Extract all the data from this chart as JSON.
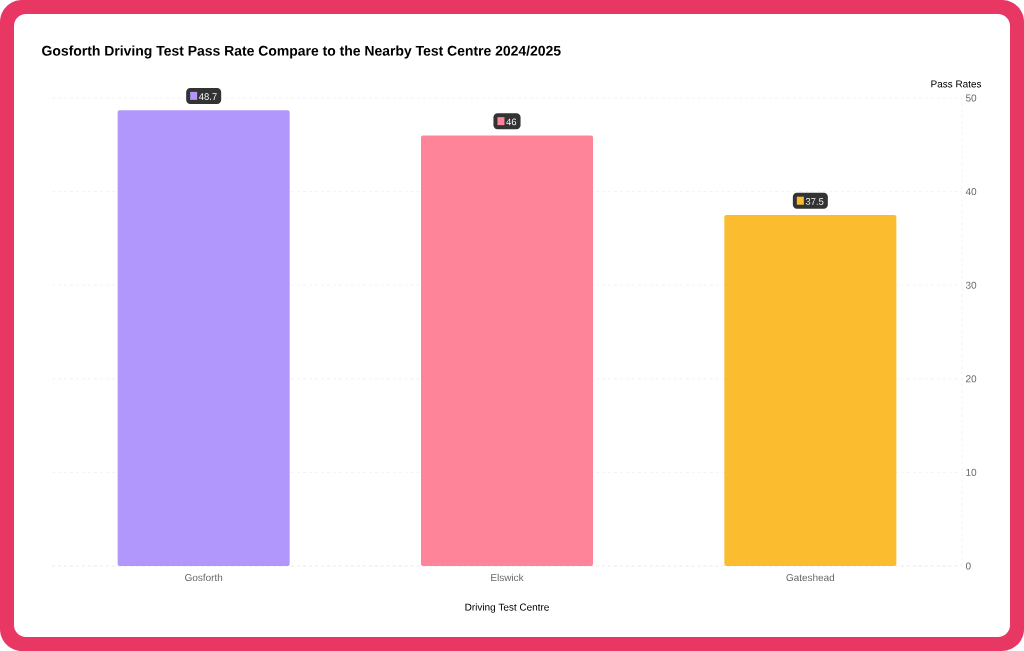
{
  "chart_data": {
    "type": "bar",
    "title": "Gosforth Driving Test Pass Rate Compare to the Nearby Test Centre 2024/2025",
    "xlabel": "Driving Test Centre",
    "ylabel": "Pass Rates",
    "categories": [
      "Gosforth",
      "Elswick",
      "Gateshead"
    ],
    "values": [
      48.7,
      46,
      37.5
    ],
    "colors": [
      "#b197fc",
      "#fe8599",
      "#fbbc30"
    ],
    "ylim": [
      0,
      50
    ],
    "yticks": [
      0,
      10,
      20,
      30,
      40,
      50
    ],
    "grid": "y",
    "data_labels": true
  }
}
